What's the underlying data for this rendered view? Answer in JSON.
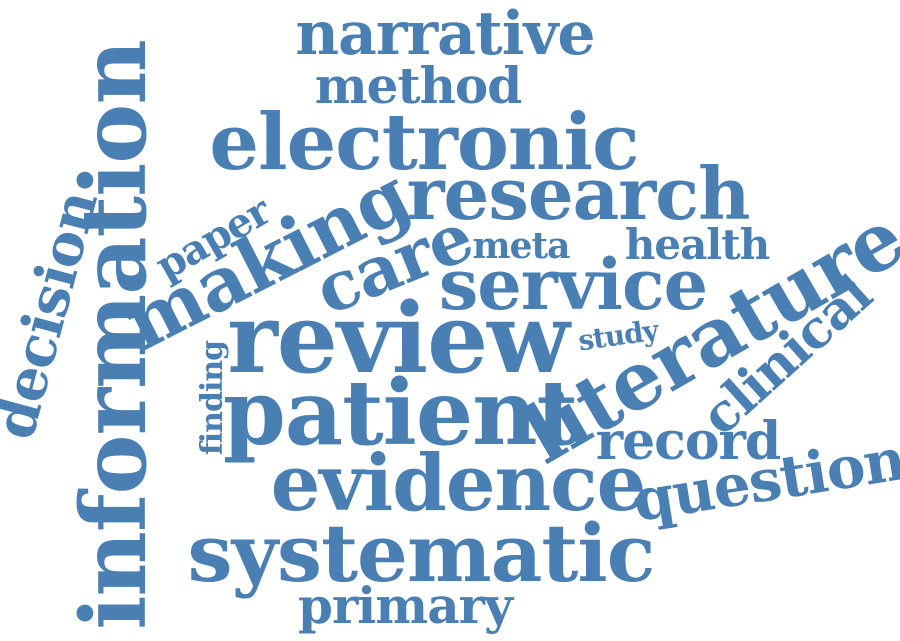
{
  "word_color": "#4a7fb3",
  "words": {
    "narrative": "narrative",
    "method": "method",
    "electronic": "electronic",
    "research": "research",
    "information": "information",
    "decision": "decision",
    "paper": "paper",
    "making": "making",
    "care": "care",
    "meta": "meta",
    "health": "health",
    "service": "service",
    "literature": "literature",
    "clinical": "clinical",
    "review": "review",
    "study": "study",
    "finding": "finding",
    "patient": "patient",
    "record": "record",
    "evidence": "evidence",
    "question": "question",
    "systematic": "systematic",
    "primary": "primary"
  }
}
